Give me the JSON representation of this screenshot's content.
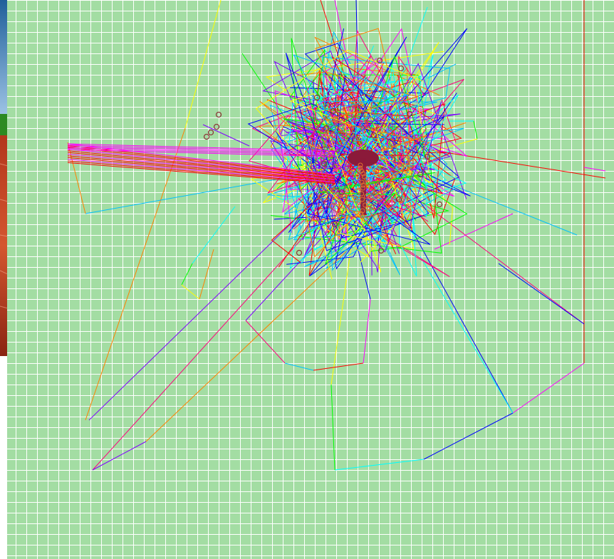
{
  "viewer": {
    "background_image": "landscape-thumbnail",
    "grid": {
      "visible": true,
      "fill_color": "#A3DDA3",
      "line_color": "#FFFFFF"
    },
    "palette": [
      "#FF0000",
      "#FF00FF",
      "#0000FF",
      "#00FFFF",
      "#00FF00",
      "#FFFF00",
      "#FF8000",
      "#8000FF",
      "#FF0080",
      "#00C0FF"
    ],
    "hub_color": "#8B1A3A",
    "marker_color": "#8B3A3A"
  }
}
